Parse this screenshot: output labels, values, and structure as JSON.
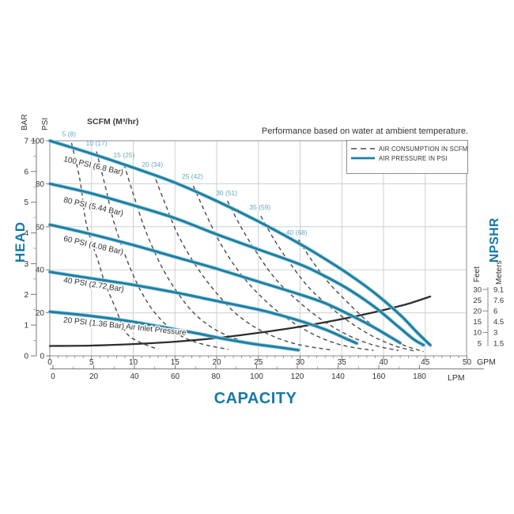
{
  "chart_data": {
    "type": "line",
    "title": "Performance based on water at ambient temperature.",
    "scfm_axis_title": "SCFM (M³/hr)",
    "legend": {
      "items": [
        {
          "label": "AIR CONSUMPTION IN SCFM",
          "style": "dashed"
        },
        {
          "label": "AIR PRESSURE IN PSI",
          "style": "solid"
        }
      ]
    },
    "axes": {
      "x": {
        "label": "CAPACITY",
        "gpm_unit": "GPM",
        "gpm_ticks": [
          0,
          5,
          10,
          15,
          20,
          25,
          30,
          35,
          40,
          45,
          50
        ],
        "lpm_unit": "LPM",
        "lpm_ticks": [
          0,
          20,
          40,
          60,
          80,
          100,
          120,
          140,
          160,
          180
        ]
      },
      "y_left": {
        "label": "HEAD",
        "bar_unit": "BAR",
        "bar_ticks": [
          0,
          1,
          2,
          3,
          4,
          5,
          6,
          7
        ],
        "psi_unit": "PSI",
        "psi_ticks": [
          0,
          20,
          40,
          60,
          80,
          100
        ]
      },
      "y_right": {
        "label": "NPSHR",
        "feet_unit": "Feet",
        "meters_unit": "Meters",
        "rows": [
          {
            "feet": 30,
            "meters": "9.1"
          },
          {
            "feet": 25,
            "meters": "7.6"
          },
          {
            "feet": 20,
            "meters": "6"
          },
          {
            "feet": 15,
            "meters": "4.5"
          },
          {
            "feet": 10,
            "meters": "3"
          },
          {
            "feet": 5,
            "meters": "1.5"
          }
        ]
      }
    },
    "air_pressure_curves": [
      {
        "label": "100 PSI (6.8 Bar)",
        "label_pos": [
          1.6,
          90.5
        ],
        "label_angle": 13,
        "points": [
          [
            0,
            100
          ],
          [
            5,
            94
          ],
          [
            10,
            87.5
          ],
          [
            15,
            80.5
          ],
          [
            20,
            72
          ],
          [
            25,
            62.5
          ],
          [
            30,
            52
          ],
          [
            33,
            45
          ],
          [
            36,
            37.5
          ],
          [
            39,
            29
          ],
          [
            42,
            19
          ],
          [
            44,
            11
          ],
          [
            45.6,
            5
          ]
        ]
      },
      {
        "label": "80 PSI (5.44 Bar)",
        "label_pos": [
          1.6,
          71.5
        ],
        "label_angle": 13,
        "points": [
          [
            0,
            80
          ],
          [
            5,
            75.5
          ],
          [
            10,
            70
          ],
          [
            15,
            64
          ],
          [
            20,
            56.5
          ],
          [
            25,
            49.5
          ],
          [
            30,
            42.5
          ],
          [
            33,
            37
          ],
          [
            36,
            30.5
          ],
          [
            39,
            22.5
          ],
          [
            41.5,
            14.5
          ],
          [
            43.5,
            8
          ],
          [
            44.8,
            5
          ]
        ]
      },
      {
        "label": "60 PSI (4.08 Bar)",
        "label_pos": [
          1.6,
          53.5
        ],
        "label_angle": 13,
        "points": [
          [
            0,
            61
          ],
          [
            5,
            56.5
          ],
          [
            10,
            51.5
          ],
          [
            15,
            46
          ],
          [
            20,
            40.5
          ],
          [
            25,
            34.5
          ],
          [
            30,
            28.5
          ],
          [
            33,
            24.5
          ],
          [
            36,
            19
          ],
          [
            38.5,
            14
          ],
          [
            40.5,
            9.5
          ],
          [
            42,
            6
          ]
        ]
      },
      {
        "label": "40 PSI (2.72 Bar)",
        "label_pos": [
          1.6,
          34.2
        ],
        "label_angle": 9,
        "points": [
          [
            0,
            39
          ],
          [
            5,
            36
          ],
          [
            10,
            33
          ],
          [
            15,
            29.5
          ],
          [
            20,
            25.5
          ],
          [
            25,
            21.5
          ],
          [
            28,
            18.5
          ],
          [
            31,
            15
          ],
          [
            33.5,
            11.5
          ],
          [
            35.5,
            8
          ],
          [
            36.8,
            5.8
          ]
        ]
      },
      {
        "label": "20 PSI (1.36 Bar) Air Inlet Pressure",
        "label_pos": [
          1.6,
          15.6
        ],
        "label_angle": 6,
        "points": [
          [
            0,
            20.5
          ],
          [
            5,
            18.5
          ],
          [
            10,
            15.8
          ],
          [
            15,
            12.3
          ],
          [
            18,
            10.2
          ],
          [
            21,
            7.8
          ],
          [
            24,
            5.8
          ],
          [
            27,
            4.2
          ],
          [
            29.8,
            2.7
          ]
        ]
      }
    ],
    "air_consumption_curves": [
      {
        "label": "5 (8)",
        "label_pos": [
          2.3,
          102
        ],
        "points": [
          [
            2.6,
            99
          ],
          [
            3.6,
            82
          ],
          [
            4.4,
            61
          ],
          [
            5.8,
            44
          ],
          [
            6.6,
            34
          ],
          [
            7.9,
            22
          ],
          [
            9.1,
            11
          ],
          [
            10.7,
            6.5
          ],
          [
            13,
            3
          ]
        ]
      },
      {
        "label": "10 (17)",
        "label_pos": [
          5.6,
          97.8
        ],
        "points": [
          [
            5.6,
            95
          ],
          [
            6.7,
            78
          ],
          [
            7.7,
            62
          ],
          [
            9.2,
            45
          ],
          [
            10.8,
            31
          ],
          [
            12.6,
            20
          ],
          [
            15,
            11
          ],
          [
            17.8,
            6
          ],
          [
            21.4,
            3
          ]
        ]
      },
      {
        "label": "15 (25)",
        "label_pos": [
          8.9,
          92.3
        ],
        "points": [
          [
            8.9,
            89
          ],
          [
            10.1,
            74
          ],
          [
            11.4,
            59
          ],
          [
            13.2,
            43
          ],
          [
            15.2,
            30
          ],
          [
            17.5,
            19
          ],
          [
            20.4,
            11
          ],
          [
            24,
            6
          ],
          [
            28.8,
            2.8
          ]
        ]
      },
      {
        "label": "20 (34)",
        "label_pos": [
          12.3,
          87.9
        ],
        "points": [
          [
            12.4,
            85
          ],
          [
            13.8,
            71
          ],
          [
            15.4,
            56
          ],
          [
            17.5,
            42
          ],
          [
            19.8,
            30
          ],
          [
            22.5,
            19
          ],
          [
            25.7,
            11
          ],
          [
            29.5,
            5.5
          ],
          [
            34,
            2.6
          ]
        ]
      },
      {
        "label": "25 (42)",
        "label_pos": [
          17.1,
          82.4
        ],
        "points": [
          [
            17.2,
            79
          ],
          [
            18.7,
            66
          ],
          [
            20.5,
            52
          ],
          [
            22.7,
            39
          ],
          [
            25.2,
            28
          ],
          [
            28.2,
            18
          ],
          [
            31.6,
            10
          ],
          [
            35,
            5
          ],
          [
            38.8,
            2.5
          ]
        ]
      },
      {
        "label": "30 (51)",
        "label_pos": [
          21.2,
          74.6
        ],
        "points": [
          [
            21.3,
            72
          ],
          [
            22.9,
            60
          ],
          [
            24.8,
            48
          ],
          [
            27,
            36
          ],
          [
            29.6,
            26
          ],
          [
            32.5,
            17
          ],
          [
            35.8,
            9.5
          ],
          [
            38.8,
            5
          ],
          [
            41.8,
            2.5
          ]
        ]
      },
      {
        "label": "35 (59)",
        "label_pos": [
          25.2,
          68
        ],
        "points": [
          [
            25.3,
            65
          ],
          [
            26.9,
            54
          ],
          [
            28.8,
            43
          ],
          [
            31,
            32
          ],
          [
            33.5,
            23
          ],
          [
            36.2,
            15
          ],
          [
            39,
            8.5
          ],
          [
            41.5,
            4.5
          ],
          [
            43.6,
            2.3
          ]
        ]
      },
      {
        "label": "40 (68)",
        "label_pos": [
          29.6,
          56.3
        ],
        "points": [
          [
            29.8,
            54
          ],
          [
            31.3,
            45
          ],
          [
            33.2,
            35
          ],
          [
            35.4,
            26
          ],
          [
            37.8,
            17
          ],
          [
            40.2,
            10
          ],
          [
            42.4,
            5
          ],
          [
            44.8,
            2
          ]
        ]
      }
    ],
    "npshr_curve": {
      "points_gpm_feet": [
        [
          0,
          3.7
        ],
        [
          5,
          3.9
        ],
        [
          10,
          4.6
        ],
        [
          15,
          5.7
        ],
        [
          20,
          7.4
        ],
        [
          25,
          9.8
        ],
        [
          30,
          12.7
        ],
        [
          35,
          16.2
        ],
        [
          40,
          20.4
        ],
        [
          43,
          23.4
        ],
        [
          45.6,
          26.7
        ]
      ]
    }
  },
  "colors": {
    "pressure_curve": "#1d7fa2",
    "pressure_halo": "#8fc6da",
    "consumption_dash": "#4a4a4a",
    "npshr_curve": "#2e2e2e",
    "grid": "#cbd0d3",
    "border": "#9aa0a4",
    "text_dark": "#333333",
    "text_blue": "#1579a6",
    "scfm_label_blue": "#6aa5c2"
  }
}
